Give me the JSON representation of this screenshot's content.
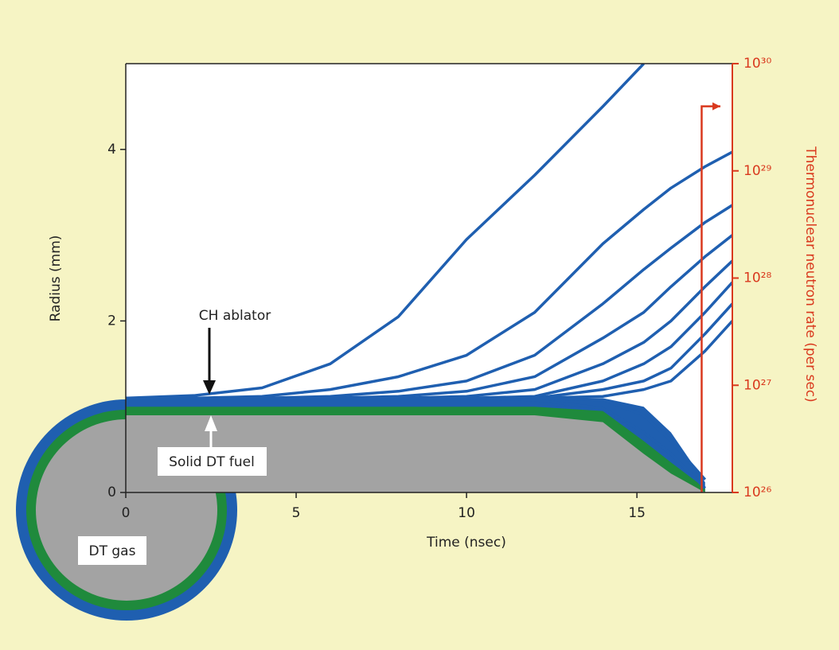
{
  "chart_data": {
    "type": "line",
    "xlabel": "Time (nsec)",
    "ylabel": "Radius (mm)",
    "y2label": "Thermonuclear neutron rate (per sec)",
    "xlim": [
      0,
      17.8
    ],
    "ylim": [
      0,
      5
    ],
    "y2lim": [
      1e+26,
      1e+30
    ],
    "y2scale": "log",
    "xticks": [
      0,
      5,
      10,
      15
    ],
    "yticks": [
      0,
      2,
      4
    ],
    "y2ticks": [
      {
        "value": 1e+26,
        "label": "10²⁶"
      },
      {
        "value": 1e+27,
        "label": "10²⁷"
      },
      {
        "value": 1e+28,
        "label": "10²⁸"
      },
      {
        "value": 1e+29,
        "label": "10²⁹"
      },
      {
        "value": 1e+30,
        "label": "10³⁰"
      }
    ],
    "x": [
      0,
      2,
      4,
      6,
      8,
      10,
      12,
      14,
      15.2,
      16,
      17,
      17.8
    ],
    "series": [
      {
        "color": "#1f5fb0",
        "fill": true,
        "values": [
          1.1,
          1.1,
          1.1,
          1.1,
          1.1,
          1.1,
          1.1,
          1.1,
          1.0,
          0.7,
          0.12,
          null
        ]
      },
      {
        "color": "#1f8a3c",
        "fill": true,
        "values": [
          1.0,
          1.0,
          1.0,
          1.0,
          1.0,
          1.0,
          1.0,
          0.95,
          0.6,
          0.35,
          0.05,
          null
        ]
      },
      {
        "color": "#a3a3a3",
        "fill": true,
        "values": [
          0.9,
          0.9,
          0.9,
          0.9,
          0.9,
          0.9,
          0.9,
          0.82,
          0.45,
          0.22,
          0.0,
          null
        ]
      },
      {
        "color": "#1f5fb0",
        "values": [
          1.1,
          1.13,
          1.22,
          1.5,
          2.05,
          2.95,
          3.7,
          4.5,
          5,
          null,
          null,
          null
        ]
      },
      {
        "color": "#1f5fb0",
        "values": [
          1.1,
          1.1,
          1.12,
          1.2,
          1.35,
          1.6,
          2.1,
          2.9,
          3.3,
          3.55,
          3.8,
          3.97
        ]
      },
      {
        "color": "#1f5fb0",
        "values": [
          1.1,
          1.1,
          1.1,
          1.12,
          1.18,
          1.3,
          1.6,
          2.2,
          2.6,
          2.85,
          3.15,
          3.35
        ]
      },
      {
        "color": "#1f5fb0",
        "values": [
          1.1,
          1.1,
          1.1,
          1.1,
          1.12,
          1.18,
          1.35,
          1.8,
          2.1,
          2.4,
          2.75,
          3.0
        ]
      },
      {
        "color": "#1f5fb0",
        "values": [
          1.1,
          1.1,
          1.1,
          1.1,
          1.1,
          1.12,
          1.2,
          1.5,
          1.75,
          2.0,
          2.4,
          2.7
        ]
      },
      {
        "color": "#1f5fb0",
        "values": [
          1.1,
          1.1,
          1.1,
          1.1,
          1.1,
          1.1,
          1.12,
          1.3,
          1.5,
          1.7,
          2.1,
          2.45
        ]
      },
      {
        "color": "#1f5fb0",
        "values": [
          1.1,
          1.1,
          1.1,
          1.1,
          1.1,
          1.1,
          1.1,
          1.2,
          1.3,
          1.45,
          1.85,
          2.2
        ]
      },
      {
        "color": "#1f5fb0",
        "values": [
          1.1,
          1.1,
          1.1,
          1.1,
          1.1,
          1.1,
          1.1,
          1.12,
          1.2,
          1.3,
          1.65,
          2.0
        ]
      },
      {
        "color": "#1f5fb0",
        "values": [
          1.1,
          1.1,
          1.1,
          1.1,
          1.1,
          1.1,
          1.1,
          1.08,
          0.9,
          0.6,
          0.15,
          null
        ]
      },
      {
        "color": "#1f5fb0",
        "values": [
          1.1,
          1.1,
          1.1,
          1.1,
          1.1,
          1.1,
          1.08,
          0.98,
          0.7,
          0.45,
          0.05,
          null
        ]
      },
      {
        "color": "#d9391e",
        "axis": "y2",
        "x": [
          16.9,
          16.9,
          17.45
        ],
        "values": [
          1e+26,
          4e+29,
          4e+29
        ]
      }
    ],
    "annotations": [
      "CH ablator",
      "Solid DT fuel",
      "DT gas"
    ]
  }
}
